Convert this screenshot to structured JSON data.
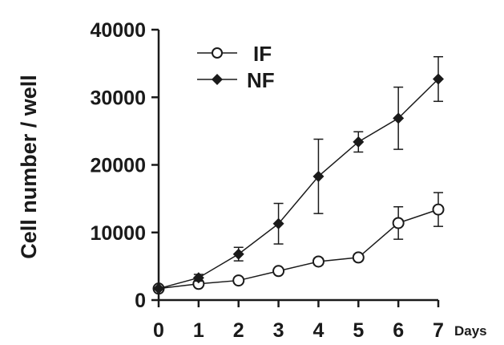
{
  "chart_data": {
    "type": "line",
    "title": "",
    "xlabel": "Days",
    "ylabel": "Cell number / well",
    "x": [
      0,
      1,
      2,
      3,
      4,
      5,
      6,
      7
    ],
    "xlim": [
      0,
      7
    ],
    "ylim": [
      0,
      40000
    ],
    "xticks": [
      "0",
      "1",
      "2",
      "3",
      "4",
      "5",
      "6",
      "7"
    ],
    "yticks": [
      "0",
      "10000",
      "20000",
      "30000",
      "40000"
    ],
    "grid": false,
    "legend_position": "top-left",
    "series": [
      {
        "name": "IF",
        "marker": "open-circle",
        "color": "#1a1a1a",
        "values": [
          1700,
          2400,
          2900,
          4300,
          5700,
          6300,
          11400,
          13400
        ],
        "error": [
          0,
          300,
          400,
          400,
          500,
          500,
          2400,
          2500
        ]
      },
      {
        "name": "NF",
        "marker": "filled-diamond",
        "color": "#1a1a1a",
        "values": [
          1700,
          3300,
          6800,
          11300,
          18300,
          23400,
          26900,
          32700
        ],
        "error": [
          0,
          500,
          1000,
          3000,
          5500,
          1500,
          4600,
          3300
        ]
      }
    ]
  }
}
